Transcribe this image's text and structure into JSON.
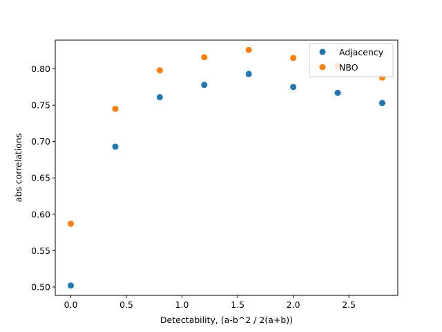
{
  "chart_data": {
    "type": "scatter",
    "xlabel": "Detectability, (a-b^2 / 2(a+b))",
    "ylabel": "abs correlations",
    "xlim": [
      -0.14,
      2.94
    ],
    "ylim": [
      0.4885,
      0.8395
    ],
    "x_ticks": [
      0.0,
      0.5,
      1.0,
      1.5,
      2.0,
      2.5
    ],
    "x_tick_labels": [
      "0.0",
      "0.5",
      "1.0",
      "1.5",
      "2.0",
      "2.5"
    ],
    "y_ticks": [
      0.5,
      0.55,
      0.6,
      0.65,
      0.7,
      0.75,
      0.8
    ],
    "y_tick_labels": [
      "0.50",
      "0.55",
      "0.60",
      "0.65",
      "0.70",
      "0.75",
      "0.80"
    ],
    "grid": false,
    "legend_position": "top-right",
    "x": [
      0.0,
      0.4,
      0.8,
      1.2,
      1.6,
      2.0,
      2.4,
      2.8
    ],
    "series": [
      {
        "name": "Adjacency",
        "color": "#1f77b4",
        "values": [
          0.502,
          0.693,
          0.761,
          0.778,
          0.793,
          0.775,
          0.767,
          0.753
        ]
      },
      {
        "name": "NBO",
        "color": "#ff7f0e",
        "values": [
          0.587,
          0.745,
          0.798,
          0.816,
          0.826,
          0.815,
          0.804,
          0.788
        ]
      }
    ]
  }
}
